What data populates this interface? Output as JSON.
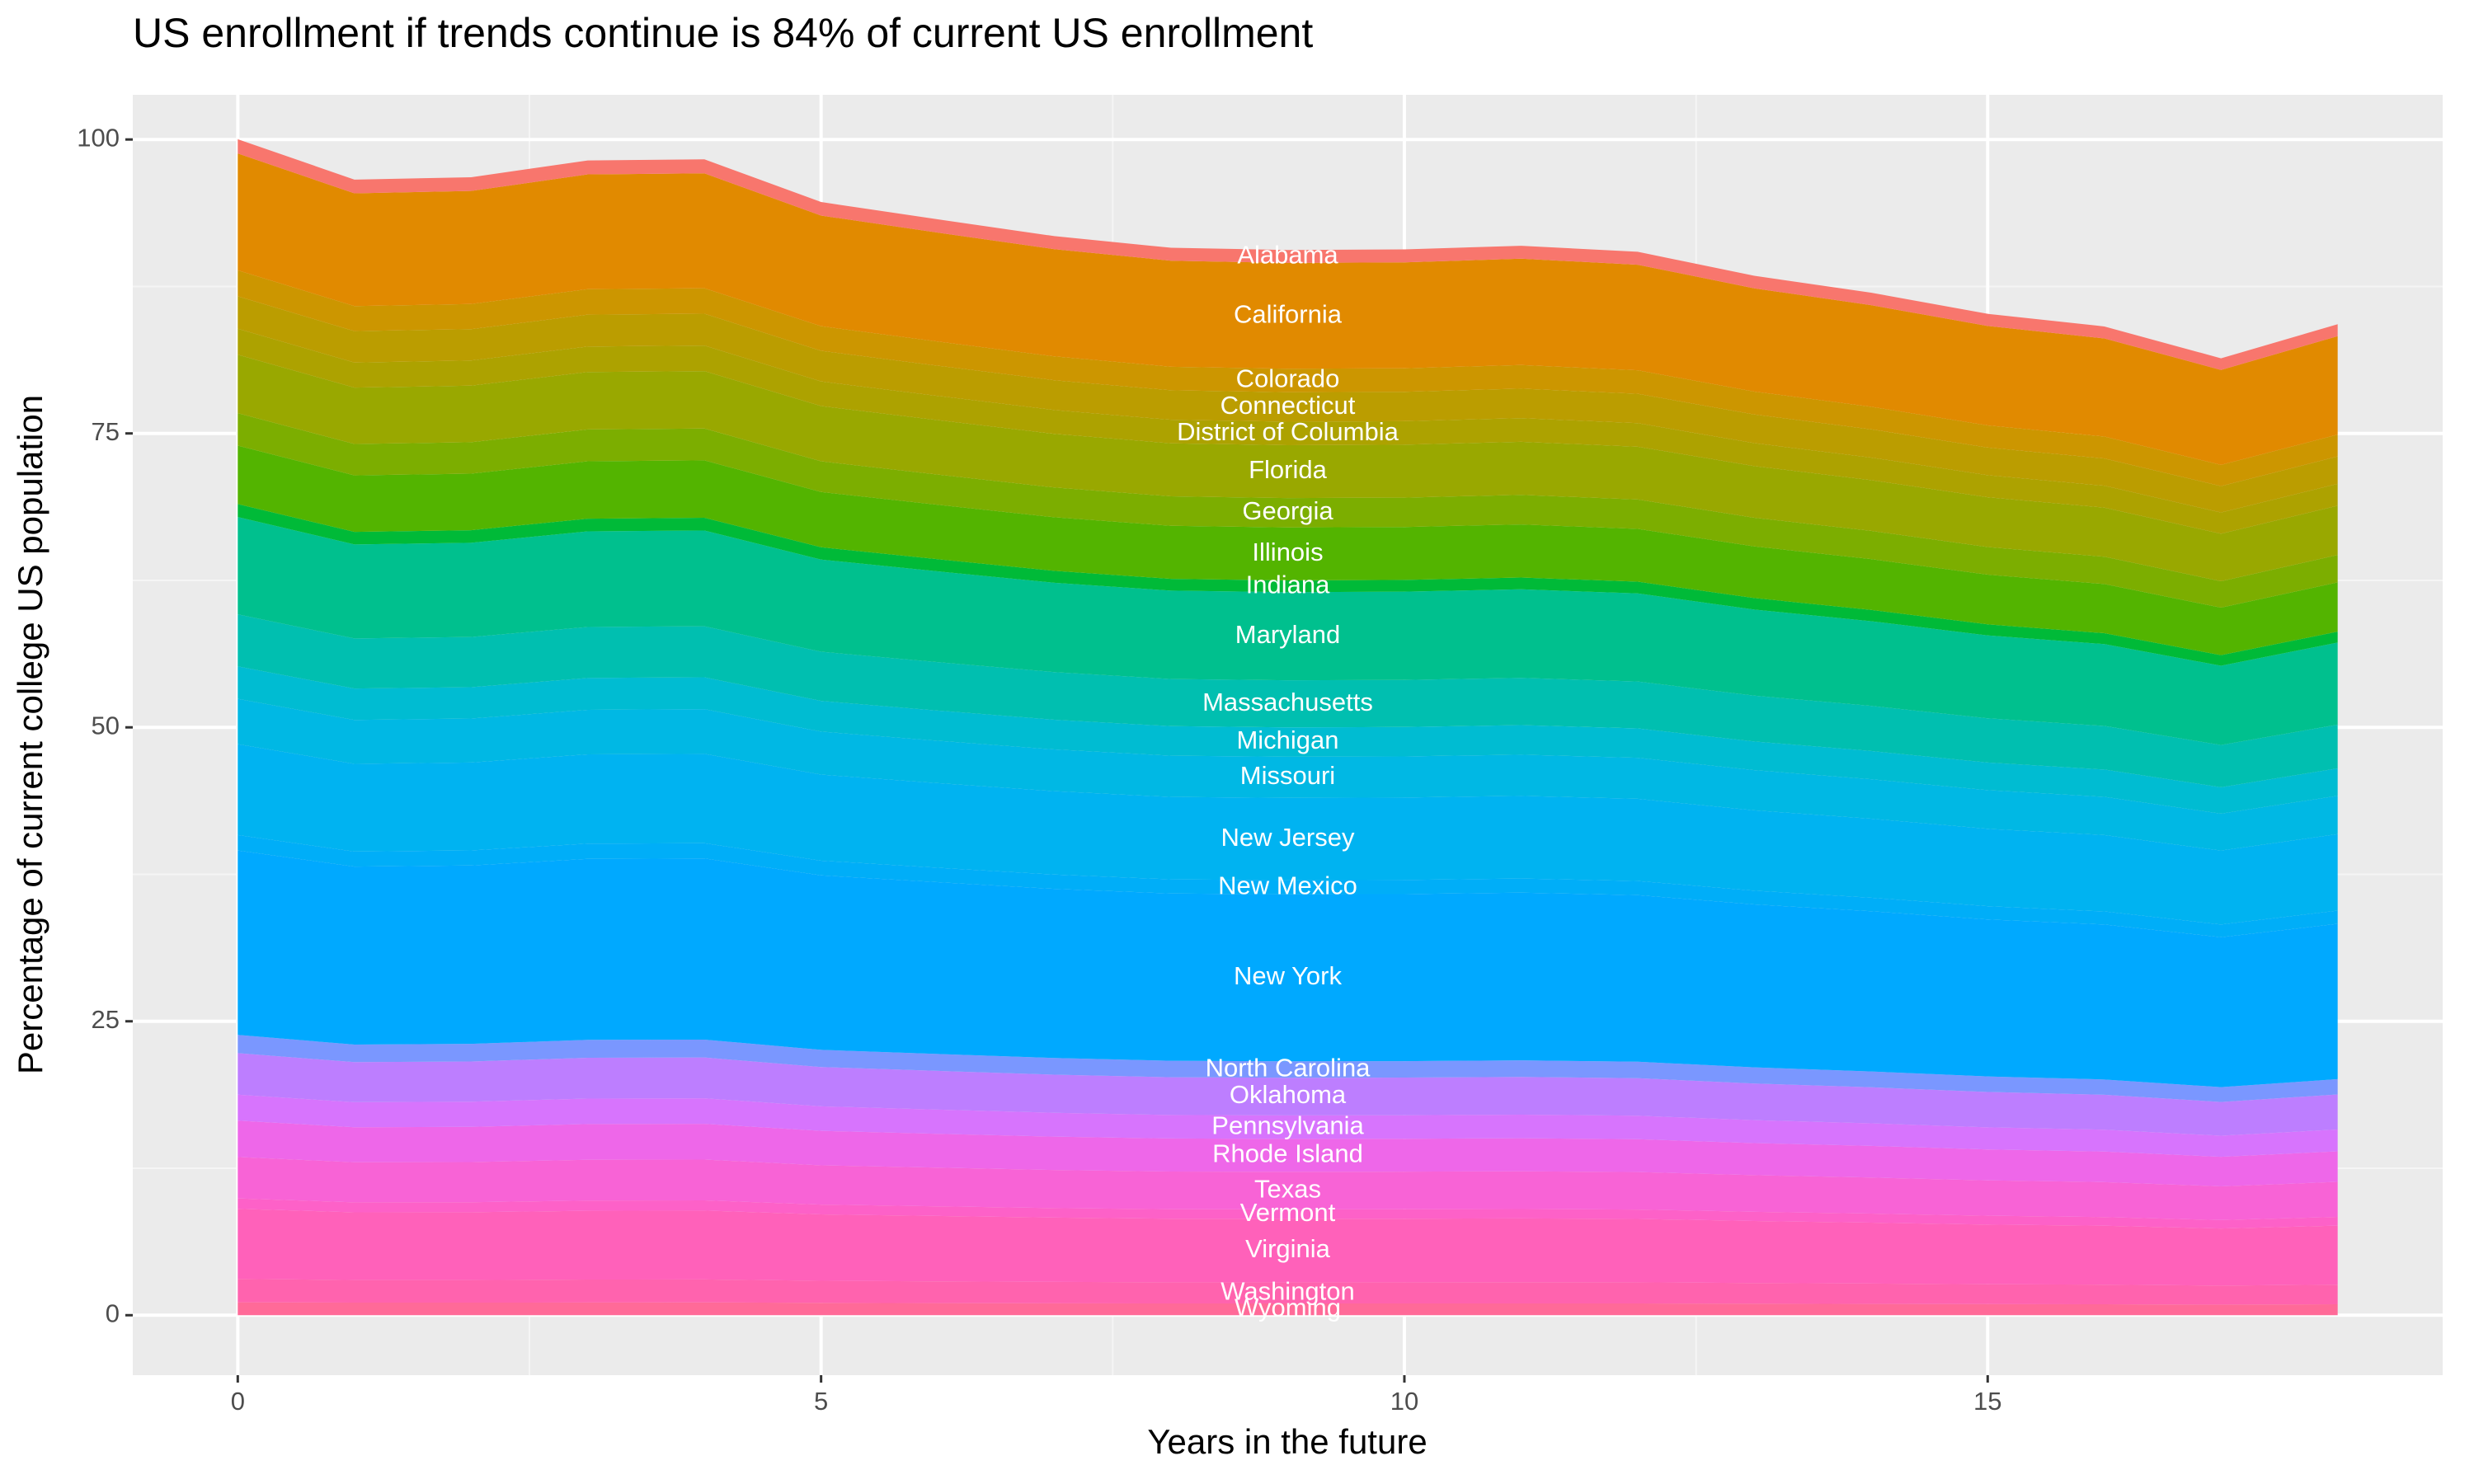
{
  "chart_data": {
    "type": "stacked_area",
    "title": "US enrollment if trends continue is 84% of current US enrollment",
    "x_label": "Years in the future",
    "y_label": "Percentage of current college US population",
    "x": [
      0,
      1,
      2,
      3,
      4,
      5,
      6,
      7,
      8,
      9,
      10,
      11,
      12,
      13,
      14,
      15,
      16,
      17,
      18
    ],
    "xlim": [
      -0.9,
      18.9
    ],
    "xticks": [
      0,
      5,
      10,
      15
    ],
    "ylim": [
      -5.1,
      103.8
    ],
    "yticks": [
      0,
      25,
      50,
      75,
      100
    ],
    "grid": true,
    "series": [
      {
        "name": "Wyoming",
        "color": "#FF6A98",
        "values": [
          1.1,
          1.07,
          1.07,
          1.08,
          1.09,
          1.05,
          1.03,
          1.01,
          1,
          1,
          1,
          1,
          1,
          0.98,
          0.96,
          0.94,
          0.93,
          0.9,
          0.93
        ]
      },
      {
        "name": "Washington",
        "color": "#FF63AE",
        "values": [
          1.99,
          1.92,
          1.92,
          1.95,
          1.95,
          1.88,
          1.85,
          1.82,
          1.8,
          1.8,
          1.8,
          1.81,
          1.8,
          1.76,
          1.73,
          1.69,
          1.67,
          1.62,
          1.67
        ]
      },
      {
        "name": "Virginia",
        "color": "#FF61BA",
        "values": [
          5.96,
          5.76,
          5.77,
          5.85,
          5.86,
          5.64,
          5.56,
          5.47,
          5.41,
          5.4,
          5.41,
          5.42,
          5.39,
          5.27,
          5.18,
          5.08,
          5.01,
          4.85,
          5.02
        ]
      },
      {
        "name": "Vermont",
        "color": "#FD61C8",
        "values": [
          0.88,
          0.85,
          0.85,
          0.87,
          0.87,
          0.84,
          0.82,
          0.81,
          0.8,
          0.8,
          0.8,
          0.8,
          0.8,
          0.78,
          0.77,
          0.75,
          0.74,
          0.72,
          0.74
        ]
      },
      {
        "name": "Texas",
        "color": "#F863D6",
        "values": [
          3.53,
          3.41,
          3.42,
          3.47,
          3.47,
          3.34,
          3.29,
          3.24,
          3.21,
          3.2,
          3.2,
          3.21,
          3.19,
          3.12,
          3.07,
          3.01,
          2.97,
          2.87,
          2.98
        ]
      },
      {
        "name": "Rhode Island",
        "color": "#EE67E9",
        "values": [
          3.09,
          2.98,
          2.99,
          3.04,
          3.04,
          2.93,
          2.88,
          2.84,
          2.81,
          2.8,
          2.8,
          2.81,
          2.79,
          2.73,
          2.69,
          2.63,
          2.6,
          2.51,
          2.6
        ]
      },
      {
        "name": "Pennsylvania",
        "color": "#D774FD",
        "values": [
          2.21,
          2.13,
          2.14,
          2.17,
          2.17,
          2.09,
          2.06,
          2.03,
          2,
          2,
          2,
          2.01,
          2,
          1.95,
          1.92,
          1.88,
          1.86,
          1.8,
          1.86
        ]
      },
      {
        "name": "Oklahoma",
        "color": "#BD7EFF",
        "values": [
          3.53,
          3.41,
          3.42,
          3.47,
          3.47,
          3.34,
          3.29,
          3.24,
          3.21,
          3.2,
          3.2,
          3.21,
          3.19,
          3.12,
          3.07,
          3.01,
          2.97,
          2.87,
          2.98
        ]
      },
      {
        "name": "North Carolina",
        "color": "#7A97FF",
        "values": [
          1.55,
          1.49,
          1.5,
          1.52,
          1.52,
          1.46,
          1.44,
          1.42,
          1.4,
          1.4,
          1.4,
          1.41,
          1.4,
          1.37,
          1.34,
          1.32,
          1.3,
          1.26,
          1.3
        ]
      },
      {
        "name": "New York",
        "color": "#00A9FF",
        "values": [
          15.68,
          15.14,
          15.17,
          15.39,
          15.41,
          14.84,
          14.61,
          14.38,
          14.23,
          14.2,
          14.21,
          14.26,
          14.17,
          13.86,
          13.63,
          13.35,
          13.18,
          12.75,
          13.21
        ]
      },
      {
        "name": "New Mexico",
        "color": "#00AEF8",
        "values": [
          1.32,
          1.28,
          1.28,
          1.3,
          1.3,
          1.25,
          1.23,
          1.22,
          1.2,
          1.2,
          1.2,
          1.2,
          1.2,
          1.17,
          1.15,
          1.13,
          1.11,
          1.08,
          1.12
        ]
      },
      {
        "name": "New Jersey",
        "color": "#00B3F1",
        "values": [
          7.73,
          7.46,
          7.48,
          7.59,
          7.6,
          7.32,
          7.2,
          7.09,
          7.01,
          7,
          7.01,
          7.03,
          6.99,
          6.83,
          6.72,
          6.58,
          6.5,
          6.29,
          6.51
        ]
      },
      {
        "name": "Missouri",
        "color": "#00B8E4",
        "values": [
          3.86,
          3.73,
          3.74,
          3.79,
          3.8,
          3.66,
          3.6,
          3.55,
          3.51,
          3.5,
          3.5,
          3.51,
          3.49,
          3.42,
          3.36,
          3.29,
          3.25,
          3.14,
          3.26
        ]
      },
      {
        "name": "Michigan",
        "color": "#00BCD2",
        "values": [
          2.76,
          2.67,
          2.67,
          2.71,
          2.71,
          2.61,
          2.57,
          2.53,
          2.51,
          2.5,
          2.5,
          2.51,
          2.5,
          2.44,
          2.4,
          2.35,
          2.32,
          2.25,
          2.33
        ]
      },
      {
        "name": "Massachusetts",
        "color": "#00BFB0",
        "values": [
          4.42,
          4.26,
          4.27,
          4.34,
          4.34,
          4.18,
          4.12,
          4.05,
          4.01,
          4,
          4,
          4.02,
          3.99,
          3.9,
          3.84,
          3.76,
          3.71,
          3.59,
          3.72
        ]
      },
      {
        "name": "Maryland",
        "color": "#00C08E",
        "values": [
          8.28,
          8,
          8.01,
          8.13,
          8.14,
          7.84,
          7.72,
          7.6,
          7.52,
          7.5,
          7.51,
          7.53,
          7.49,
          7.32,
          7.2,
          7.05,
          6.96,
          6.74,
          6.98
        ]
      },
      {
        "name": "Indiana",
        "color": "#00BA38",
        "values": [
          1.1,
          1.07,
          1.07,
          1.08,
          1.09,
          1.05,
          1.03,
          1.01,
          1,
          1,
          1,
          1,
          1,
          0.98,
          0.96,
          0.94,
          0.93,
          0.9,
          0.93
        ]
      },
      {
        "name": "Illinois",
        "color": "#53B400",
        "values": [
          4.97,
          4.8,
          4.81,
          4.88,
          4.88,
          4.7,
          4.63,
          4.56,
          4.51,
          4.5,
          4.5,
          4.52,
          4.49,
          4.39,
          4.32,
          4.23,
          4.18,
          4.04,
          4.19
        ]
      },
      {
        "name": "Georgia",
        "color": "#7CAE00",
        "values": [
          2.76,
          2.67,
          2.67,
          2.71,
          2.71,
          2.61,
          2.57,
          2.53,
          2.51,
          2.5,
          2.5,
          2.51,
          2.5,
          2.44,
          2.4,
          2.35,
          2.32,
          2.25,
          2.33
        ]
      },
      {
        "name": "Florida",
        "color": "#99A800",
        "values": [
          4.97,
          4.8,
          4.81,
          4.88,
          4.88,
          4.7,
          4.63,
          4.56,
          4.51,
          4.5,
          4.5,
          4.52,
          4.49,
          4.39,
          4.32,
          4.23,
          4.18,
          4.04,
          4.19
        ]
      },
      {
        "name": "District of Columbia",
        "color": "#ADA200",
        "values": [
          2.21,
          2.13,
          2.14,
          2.17,
          2.17,
          2.09,
          2.06,
          2.03,
          2,
          2,
          2,
          2.01,
          2,
          1.95,
          1.92,
          1.88,
          1.86,
          1.8,
          1.86
        ]
      },
      {
        "name": "Connecticut",
        "color": "#BB9D00",
        "values": [
          2.76,
          2.67,
          2.67,
          2.71,
          2.71,
          2.61,
          2.57,
          2.53,
          2.51,
          2.5,
          2.5,
          2.51,
          2.5,
          2.44,
          2.4,
          2.35,
          2.32,
          2.25,
          2.33
        ]
      },
      {
        "name": "Colorado",
        "color": "#CC9600",
        "values": [
          2.21,
          2.13,
          2.14,
          2.17,
          2.17,
          2.09,
          2.06,
          2.03,
          2,
          2,
          2,
          2.01,
          2,
          1.95,
          1.92,
          1.88,
          1.86,
          1.8,
          1.86
        ]
      },
      {
        "name": "California",
        "color": "#E18A00",
        "values": [
          9.94,
          9.59,
          9.61,
          9.76,
          9.77,
          9.41,
          9.26,
          9.12,
          9.02,
          9,
          9.01,
          9.04,
          8.98,
          8.78,
          8.64,
          8.46,
          8.35,
          8.08,
          8.37
        ]
      },
      {
        "name": "Alabama",
        "color": "#F8766D",
        "values": [
          1.21,
          1.17,
          1.17,
          1.19,
          1.19,
          1.15,
          1.13,
          1.11,
          1.1,
          1.1,
          1.1,
          1.1,
          1.1,
          1.07,
          1.06,
          1.03,
          1.02,
          0.99,
          1.02
        ]
      }
    ]
  }
}
